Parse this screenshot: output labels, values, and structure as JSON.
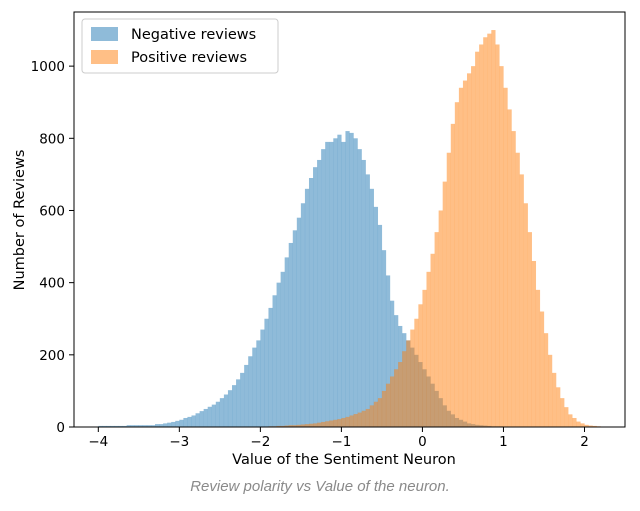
{
  "caption": "Review polarity vs Value of the neuron.",
  "colors": {
    "negative": "#1f77b4",
    "positive": "#ff7f0e"
  },
  "chart_data": {
    "type": "histogram",
    "title": "",
    "xlabel": "Value of the Sentiment Neuron",
    "ylabel": "Number of Reviews",
    "xlim": [
      -4.3,
      2.5
    ],
    "ylim": [
      0,
      1150
    ],
    "xticks": [
      -4,
      -3,
      -2,
      -1,
      0,
      1,
      2
    ],
    "xtick_labels": [
      "−4",
      "−3",
      "−2",
      "−1",
      "0",
      "1",
      "2"
    ],
    "yticks": [
      0,
      200,
      400,
      600,
      800,
      1000
    ],
    "ytick_labels": [
      "0",
      "200",
      "400",
      "600",
      "800",
      "1000"
    ],
    "legend_position": "top-left",
    "bin_width": 0.05,
    "series": [
      {
        "name": "Negative reviews",
        "color": "#1f77b4",
        "opacity": 0.5,
        "bin_start": -4.0,
        "values": [
          3,
          3,
          3,
          3,
          3,
          3,
          3,
          5,
          5,
          5,
          5,
          5,
          5,
          5,
          8,
          8,
          10,
          12,
          14,
          17,
          20,
          25,
          28,
          32,
          38,
          44,
          50,
          56,
          62,
          70,
          80,
          90,
          102,
          116,
          132,
          150,
          172,
          196,
          220,
          240,
          270,
          300,
          330,
          365,
          400,
          430,
          470,
          510,
          545,
          580,
          620,
          660,
          690,
          720,
          740,
          770,
          790,
          790,
          800,
          810,
          790,
          820,
          815,
          800,
          770,
          740,
          700,
          660,
          610,
          560,
          490,
          420,
          350,
          310,
          280,
          260,
          240,
          220,
          200,
          180,
          160,
          140,
          120,
          100,
          80,
          60,
          45,
          35,
          25,
          20,
          15,
          10,
          8,
          6,
          5,
          4,
          3,
          2,
          2,
          2,
          1,
          1,
          1,
          0,
          0,
          0,
          0,
          0,
          0,
          0,
          0,
          0,
          0,
          0,
          0,
          0,
          0,
          0,
          0,
          0
        ]
      },
      {
        "name": "Positive reviews",
        "color": "#ff7f0e",
        "opacity": 0.5,
        "bin_start": -2.0,
        "values": [
          1,
          1,
          2,
          2,
          3,
          3,
          4,
          5,
          5,
          6,
          7,
          8,
          9,
          10,
          12,
          14,
          16,
          18,
          20,
          22,
          25,
          28,
          32,
          36,
          40,
          45,
          50,
          60,
          70,
          80,
          100,
          120,
          140,
          160,
          180,
          210,
          240,
          270,
          300,
          340,
          380,
          430,
          480,
          540,
          600,
          680,
          760,
          840,
          900,
          940,
          960,
          980,
          1000,
          1040,
          1060,
          1080,
          1090,
          1100,
          1060,
          1000,
          940,
          880,
          820,
          760,
          700,
          620,
          540,
          460,
          380,
          320,
          260,
          200,
          150,
          110,
          80,
          55,
          35,
          25,
          15,
          10,
          6,
          4,
          3,
          2,
          1,
          1,
          0,
          0,
          0,
          0
        ]
      }
    ]
  }
}
